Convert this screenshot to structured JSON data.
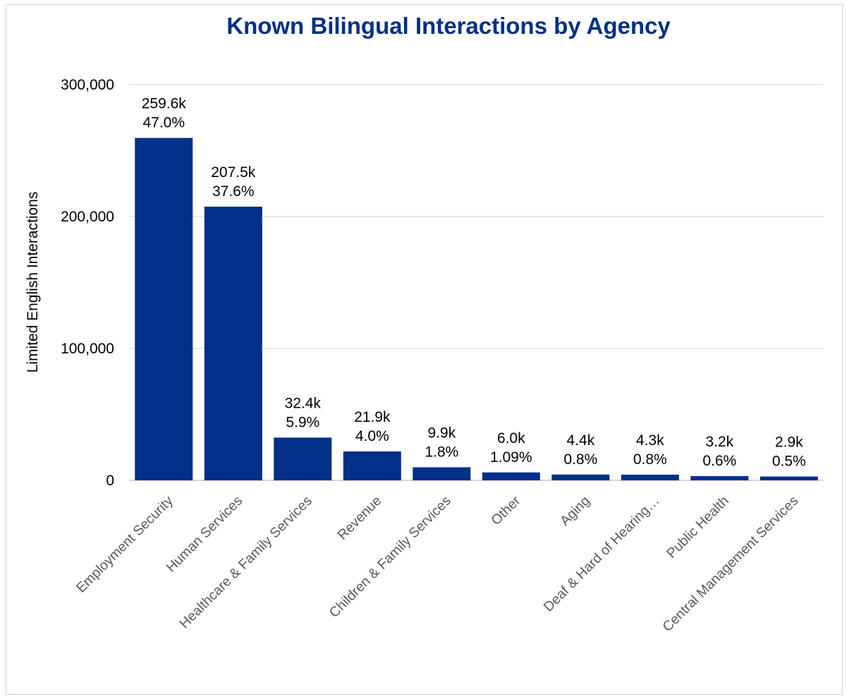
{
  "chart_data": {
    "type": "bar",
    "title": "Known Bilingual Interactions by Agency",
    "xlabel": "",
    "ylabel": "Limited English Interactions",
    "ylim": [
      0,
      300000
    ],
    "yticks": [
      0,
      100000,
      200000,
      300000
    ],
    "ytick_labels": [
      "0",
      "100,000",
      "200,000",
      "300,000"
    ],
    "grid": true,
    "legend": "none",
    "categories": [
      "Employment Security",
      "Human Services",
      "Healthcare & Family Services",
      "Revenue",
      "Children & Family Services",
      "Other",
      "Aging",
      "Deaf & Hard of Hearing…",
      "Public Health",
      "Central Management Services"
    ],
    "values": [
      259600,
      207500,
      32400,
      21900,
      9900,
      6000,
      4400,
      4300,
      3200,
      2900
    ],
    "value_labels": [
      "259.6k",
      "207.5k",
      "32.4k",
      "21.9k",
      "9.9k",
      "6.0k",
      "4.4k",
      "4.3k",
      "3.2k",
      "2.9k"
    ],
    "percent_labels": [
      "47.0%",
      "37.6%",
      "5.9%",
      "4.0%",
      "1.8%",
      "1.09%",
      "0.8%",
      "0.8%",
      "0.6%",
      "0.5%"
    ],
    "colors": {
      "bar": "#003087",
      "title": "#003087",
      "grid": "#d9d9d9",
      "axis": "#bfbfbf",
      "category_text": "#595959"
    }
  }
}
